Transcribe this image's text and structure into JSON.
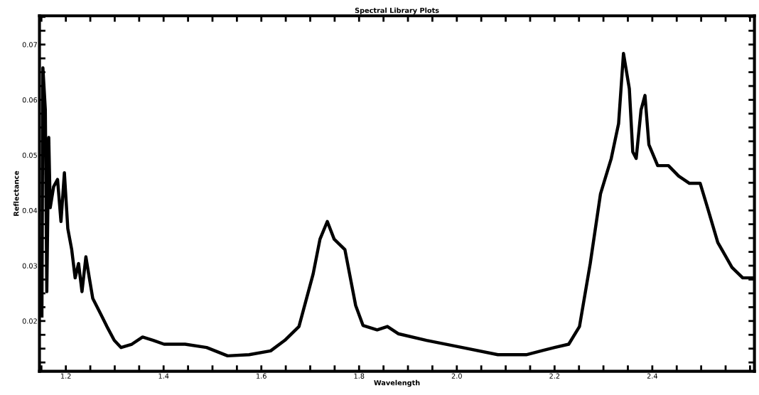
{
  "chart_data": {
    "type": "line",
    "title": "Spectral Library Plots",
    "xlabel": "Wavelength",
    "ylabel": "Reflectance",
    "xlim": [
      1.146,
      2.609
    ],
    "ylim": [
      0.0109,
      0.0752
    ],
    "xticks": [
      {
        "value": 1.15,
        "label": null
      },
      {
        "value": 1.2,
        "label": "1.2"
      },
      {
        "value": 1.25,
        "label": null
      },
      {
        "value": 1.3,
        "label": null
      },
      {
        "value": 1.35,
        "label": null
      },
      {
        "value": 1.4,
        "label": "1.4"
      },
      {
        "value": 1.45,
        "label": null
      },
      {
        "value": 1.5,
        "label": null
      },
      {
        "value": 1.55,
        "label": null
      },
      {
        "value": 1.6,
        "label": "1.6"
      },
      {
        "value": 1.65,
        "label": null
      },
      {
        "value": 1.7,
        "label": null
      },
      {
        "value": 1.75,
        "label": null
      },
      {
        "value": 1.8,
        "label": "1.8"
      },
      {
        "value": 1.85,
        "label": null
      },
      {
        "value": 1.9,
        "label": null
      },
      {
        "value": 1.95,
        "label": null
      },
      {
        "value": 2.0,
        "label": "2.0"
      },
      {
        "value": 2.05,
        "label": null
      },
      {
        "value": 2.1,
        "label": null
      },
      {
        "value": 2.15,
        "label": null
      },
      {
        "value": 2.2,
        "label": "2.2"
      },
      {
        "value": 2.25,
        "label": null
      },
      {
        "value": 2.3,
        "label": null
      },
      {
        "value": 2.35,
        "label": null
      },
      {
        "value": 2.4,
        "label": "2.4"
      },
      {
        "value": 2.45,
        "label": null
      },
      {
        "value": 2.5,
        "label": null
      },
      {
        "value": 2.55,
        "label": null
      },
      {
        "value": 2.6,
        "label": null
      }
    ],
    "yticks": [
      {
        "value": 0.0125,
        "label": null
      },
      {
        "value": 0.015,
        "label": null
      },
      {
        "value": 0.0175,
        "label": null
      },
      {
        "value": 0.02,
        "label": "0.02"
      },
      {
        "value": 0.0225,
        "label": null
      },
      {
        "value": 0.025,
        "label": null
      },
      {
        "value": 0.0275,
        "label": null
      },
      {
        "value": 0.03,
        "label": "0.03"
      },
      {
        "value": 0.0325,
        "label": null
      },
      {
        "value": 0.035,
        "label": null
      },
      {
        "value": 0.0375,
        "label": null
      },
      {
        "value": 0.04,
        "label": "0.04"
      },
      {
        "value": 0.0425,
        "label": null
      },
      {
        "value": 0.045,
        "label": null
      },
      {
        "value": 0.0475,
        "label": null
      },
      {
        "value": 0.05,
        "label": "0.05"
      },
      {
        "value": 0.0525,
        "label": null
      },
      {
        "value": 0.055,
        "label": null
      },
      {
        "value": 0.0575,
        "label": null
      },
      {
        "value": 0.06,
        "label": "0.06"
      },
      {
        "value": 0.0625,
        "label": null
      },
      {
        "value": 0.065,
        "label": null
      },
      {
        "value": 0.0675,
        "label": null
      },
      {
        "value": 0.07,
        "label": "0.07"
      },
      {
        "value": 0.0725,
        "label": null
      },
      {
        "value": 0.075,
        "label": null
      }
    ],
    "grid": false,
    "legend": false,
    "marker": "none",
    "line_style": "solid",
    "series": [
      {
        "color": "#000000",
        "x": [
          1.151,
          1.153,
          1.158,
          1.161,
          1.165,
          1.168,
          1.175,
          1.183,
          1.19,
          1.197,
          1.204,
          1.212,
          1.219,
          1.226,
          1.233,
          1.241,
          1.248,
          1.255,
          1.27,
          1.284,
          1.299,
          1.313,
          1.335,
          1.357,
          1.379,
          1.401,
          1.444,
          1.488,
          1.531,
          1.575,
          1.619,
          1.648,
          1.677,
          1.706,
          1.72,
          1.735,
          1.749,
          1.771,
          1.793,
          1.808,
          1.837,
          1.858,
          1.88,
          1.938,
          2.011,
          2.084,
          2.142,
          2.2,
          2.229,
          2.251,
          2.273,
          2.294,
          2.316,
          2.331,
          2.341,
          2.353,
          2.36,
          2.367,
          2.377,
          2.385,
          2.393,
          2.411,
          2.433,
          2.454,
          2.476,
          2.498,
          2.513,
          2.534,
          2.563,
          2.585,
          2.609
        ],
        "values": [
          0.0209,
          0.0658,
          0.0582,
          0.0253,
          0.0532,
          0.0405,
          0.0443,
          0.0456,
          0.038,
          0.0468,
          0.0367,
          0.0329,
          0.0278,
          0.0304,
          0.0253,
          0.0316,
          0.0278,
          0.0241,
          0.0215,
          0.019,
          0.0165,
          0.0152,
          0.0158,
          0.0171,
          0.0165,
          0.0158,
          0.0158,
          0.0152,
          0.0137,
          0.0139,
          0.0146,
          0.0165,
          0.019,
          0.0285,
          0.0348,
          0.038,
          0.0348,
          0.0329,
          0.0228,
          0.0192,
          0.0184,
          0.019,
          0.0177,
          0.0165,
          0.0152,
          0.0139,
          0.0139,
          0.0152,
          0.0158,
          0.019,
          0.0304,
          0.043,
          0.0494,
          0.0557,
          0.0684,
          0.062,
          0.0506,
          0.0494,
          0.0582,
          0.0608,
          0.0519,
          0.0481,
          0.0481,
          0.0462,
          0.0449,
          0.0449,
          0.0405,
          0.0342,
          0.0297,
          0.0278,
          0.0278
        ]
      }
    ]
  }
}
